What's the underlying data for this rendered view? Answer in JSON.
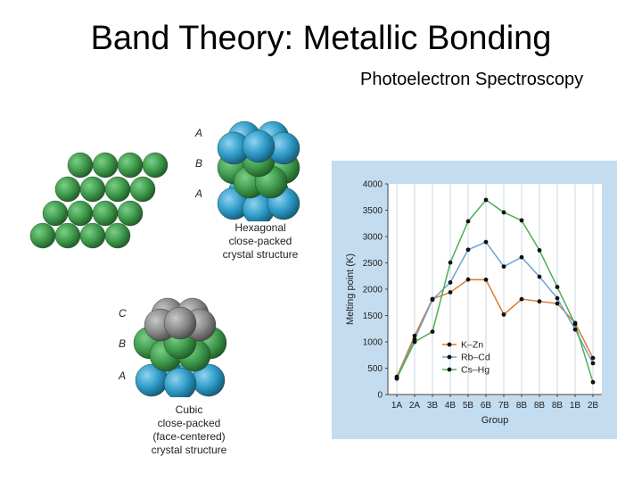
{
  "title": "Band Theory: Metallic Bonding",
  "subtitle": "Photoelectron Spectroscopy",
  "hcp": {
    "layers": [
      "A",
      "B",
      "A"
    ],
    "caption": [
      "Hexagonal",
      "close-packed",
      "crystal structure"
    ]
  },
  "ccp": {
    "layers": [
      "C",
      "B",
      "A"
    ],
    "caption": [
      "Cubic",
      "close-packed",
      "(face-centered)",
      "crystal structure"
    ]
  },
  "colors": {
    "green_atom": "#3f9a4c",
    "blue_atom": "#2f9bc8",
    "gray_atom": "#8a8a8a",
    "orange_center": "#e07b2a",
    "chart_bg": "#c4dcef",
    "plot_bg": "#ffffff"
  },
  "chart_data": {
    "type": "line",
    "title": "",
    "xlabel": "Group",
    "ylabel": "Melting point (K)",
    "categories": [
      "1A",
      "2A",
      "3B",
      "4B",
      "5B",
      "6B",
      "7B",
      "8B",
      "8B",
      "8B",
      "1B",
      "2B"
    ],
    "ylim": [
      0,
      4000
    ],
    "yticks": [
      0,
      500,
      1000,
      1500,
      2000,
      2500,
      3000,
      3500,
      4000
    ],
    "grid": "vertical",
    "legend_position": "bottom-left",
    "series": [
      {
        "name": "K–Zn",
        "color": "#e07b2a",
        "values": [
          336,
          1115,
          1814,
          1941,
          2183,
          2180,
          1519,
          1811,
          1768,
          1728,
          1358,
          693
        ]
      },
      {
        "name": "Rb–Cd",
        "color": "#6aa2d8",
        "values": [
          312,
          1050,
          1799,
          2128,
          2750,
          2896,
          2430,
          2607,
          2237,
          1828,
          1235,
          594
        ]
      },
      {
        "name": "Cs–Hg",
        "color": "#4caf50",
        "values": [
          302,
          1000,
          1193,
          2506,
          3290,
          3695,
          3459,
          3306,
          2739,
          2041,
          1337,
          234
        ]
      }
    ]
  }
}
